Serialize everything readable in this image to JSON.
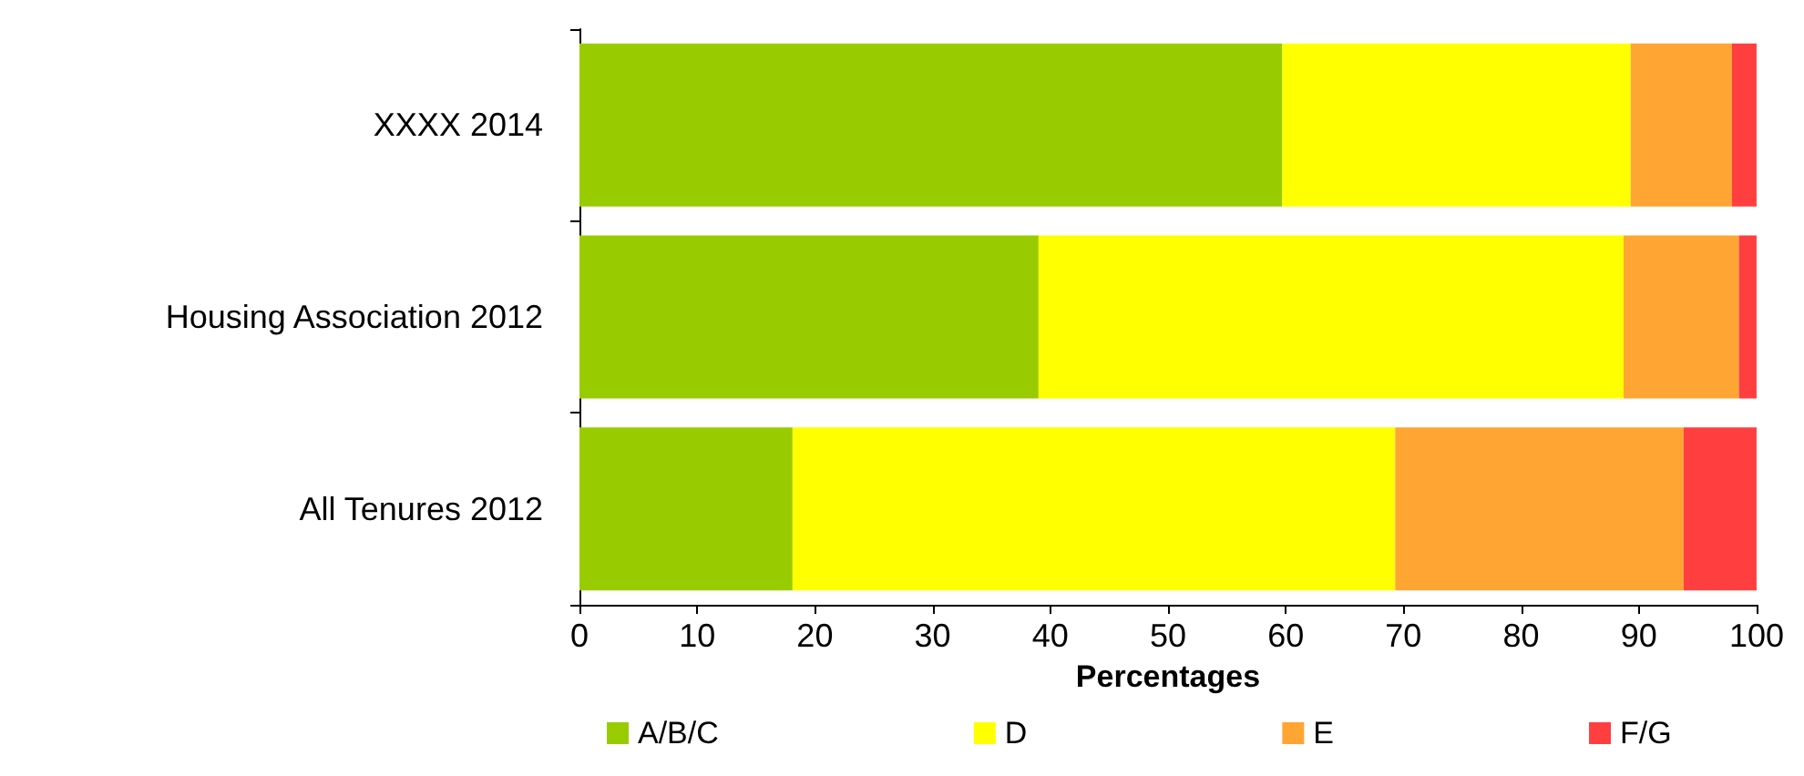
{
  "chart_data": {
    "type": "bar",
    "orientation": "horizontal",
    "stacked": true,
    "xlabel": "Percentages",
    "categories": [
      "XXXX 2014",
      "Housing Association 2012",
      "All Tenures 2012"
    ],
    "series": [
      {
        "name": "A/B/C",
        "color": "#99cc00",
        "values": [
          59.7,
          39.0,
          18.1
        ]
      },
      {
        "name": "D",
        "color": "#ffff00",
        "values": [
          29.6,
          49.7,
          51.2
        ]
      },
      {
        "name": "E",
        "color": "#ffa533",
        "values": [
          8.6,
          9.8,
          24.5
        ]
      },
      {
        "name": "F/G",
        "color": "#ff3f3f",
        "values": [
          2.1,
          1.5,
          6.2
        ]
      }
    ],
    "xlim": [
      0,
      100
    ],
    "xticks": [
      0,
      10,
      20,
      30,
      40,
      50,
      60,
      70,
      80,
      90,
      100
    ],
    "grid": false,
    "legend": "bottom"
  }
}
